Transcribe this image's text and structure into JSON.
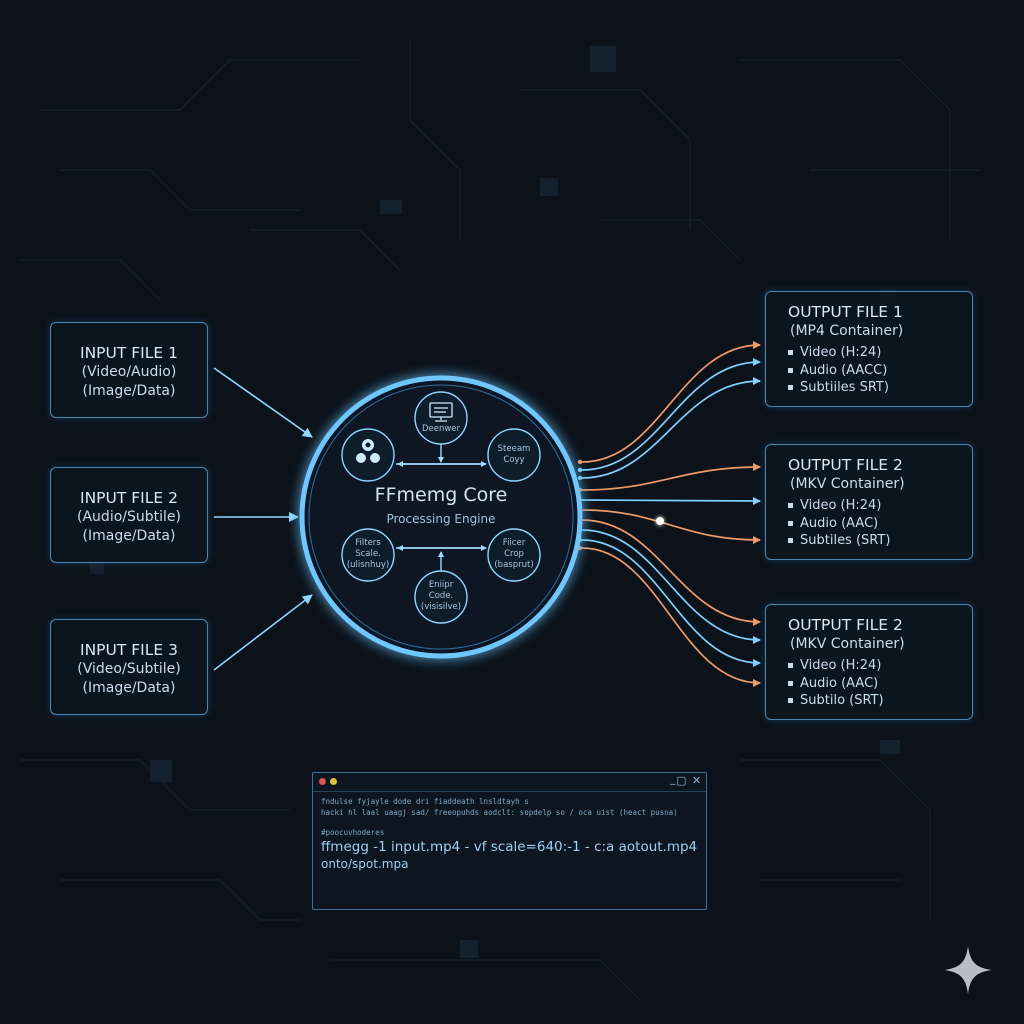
{
  "inputs": [
    {
      "title": "INPUT FILE 1",
      "line2": "(Video/Audio)",
      "line3": "(Image/Data)"
    },
    {
      "title": "INPUT FILE 2",
      "line2": "(Audio/Subtile)",
      "line3": "(Image/Data)"
    },
    {
      "title": "INPUT FILE 3",
      "line2": "(Video/Subtile)",
      "line3": "(Image/Data)"
    }
  ],
  "core": {
    "title": "FFmemg Core",
    "subtitle": "Processing Engine",
    "nodes": {
      "top": "Deenwer",
      "right_top_1": "Steeam",
      "right_top_2": "Coyy",
      "left_bottom_1": "Filters",
      "left_bottom_2": "Scale.",
      "left_bottom_3": "(ulisnhuy)",
      "right_bottom_1": "Fiicer",
      "right_bottom_2": "Crop",
      "right_bottom_3": "(basprut)",
      "bottom_1": "Eniipr",
      "bottom_2": "Code.",
      "bottom_3": "(visisilve)"
    }
  },
  "outputs": [
    {
      "title": "OUTPUT FILE 1",
      "container": "(MP4 Container)",
      "streams": [
        "Video (H:24)",
        "Audio (AACC)",
        "Subtiiles SRT)"
      ]
    },
    {
      "title": "OUTPUT FILE 2",
      "container": "(MKV Container)",
      "streams": [
        "Video (H:24)",
        "Audio (AAC)",
        "Subtiles (SRT)"
      ]
    },
    {
      "title": "OUTPUT FILE 2",
      "container": "(MKV Container)",
      "streams": [
        "Video (H:24)",
        "Audio (AAC)",
        "Subtilo (SRT)"
      ]
    }
  ],
  "terminal": {
    "line1": "fndulse fyjayle dode dri fiaddeath lnsldtayh s",
    "line2": "hacki hl laal uaagj sad/ freeopuhds aodclt: sopdelp so / oca uist (heact pusna)",
    "line3": "#poocuvhoderes",
    "command": "ffmegg -1 input.mp4 - vf scale=640:-1 - c:a aotout.mp4",
    "command2": "onto/spot.mpa",
    "controls": [
      "_",
      "▢",
      "✕"
    ]
  },
  "colors": {
    "background": "#0b121a",
    "core_ring": "#6ec8ff",
    "blue_arrow": "#7fd0ff",
    "orange_arrow": "#f09a66",
    "box_border": "#4a86b4"
  }
}
